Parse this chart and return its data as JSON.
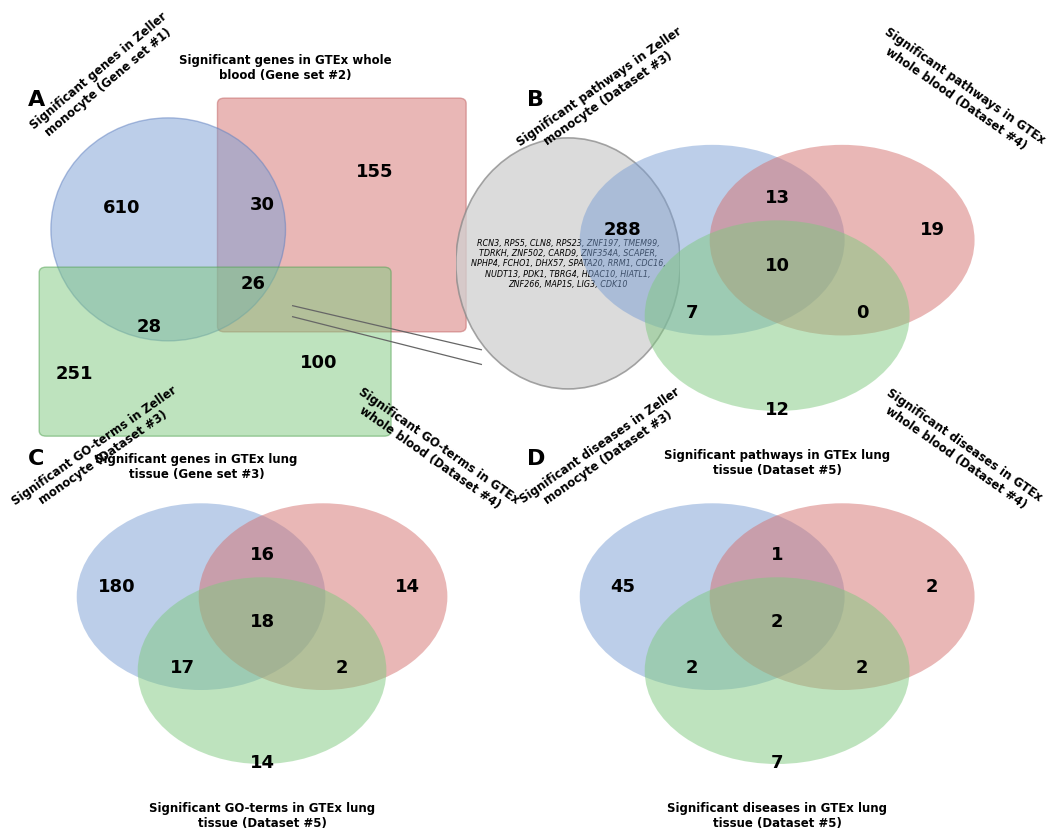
{
  "panel_A": {
    "label": "A",
    "blue_label": "Significant genes in Zeller\nmonocyte (Gene set #1)",
    "red_label": "Significant genes in GTEx whole\nblood (Gene set #2)",
    "green_label": "Significant genes in GTEx lung\ntissue (Gene set #3)",
    "blue_color": "#7b9fd4",
    "red_color": "#d4706e",
    "green_color": "#7fc97f",
    "numbers": {
      "blue_only": "610",
      "red_only": "155",
      "green_only": "251",
      "blue_red": "30",
      "blue_green": "28",
      "red_green": "100",
      "all_three": "26"
    },
    "gene_list": "RCN3, RPS5, CLN8, RPS23, ZNF197, TMEM99,\nTDRKH, ZNF502, CARD9, ZNF354A, SCAPER,\nNPHP4, FCHO1, DHX57, SPATA20, RRM1, CDC16,\nNUDT13, PDK1, TBRG4, HDAC10, HIATL1,\nZNF266, MAP1S, LIG3, CDK10"
  },
  "panel_B": {
    "label": "B",
    "blue_label": "Significant pathways in Zeller\nmonocyte (Dataset #3)",
    "red_label": "Significant pathways in GTEx\nwhole blood (Dataset #4)",
    "green_label": "Significant pathways in GTEx lung\ntissue (Dataset #5)",
    "blue_color": "#7b9fd4",
    "red_color": "#d4706e",
    "green_color": "#7fc97f",
    "numbers": {
      "blue_only": "288",
      "red_only": "19",
      "green_only": "12",
      "blue_red": "13",
      "blue_green": "7",
      "red_green": "0",
      "all_three": "10"
    }
  },
  "panel_C": {
    "label": "C",
    "blue_label": "Significant GO-terms in Zeller\nmonocyte (Dataset #3)",
    "red_label": "Significant GO-terms in GTEx\nwhole blood (Dataset #4)",
    "green_label": "Significant GO-terms in GTEx lung\ntissue (Dataset #5)",
    "blue_color": "#7b9fd4",
    "red_color": "#d4706e",
    "green_color": "#7fc97f",
    "numbers": {
      "blue_only": "180",
      "red_only": "14",
      "green_only": "14",
      "blue_red": "16",
      "blue_green": "17",
      "red_green": "2",
      "all_three": "18"
    }
  },
  "panel_D": {
    "label": "D",
    "blue_label": "Significant diseases in Zeller\nmonocyte (Dataset #3)",
    "red_label": "Significant diseases in GTEx\nwhole blood (Dataset #4)",
    "green_label": "Significant diseases in GTEx lung\ntissue (Dataset #5)",
    "blue_color": "#7b9fd4",
    "red_color": "#d4706e",
    "green_color": "#7fc97f",
    "numbers": {
      "blue_only": "45",
      "red_only": "2",
      "green_only": "7",
      "blue_red": "1",
      "blue_green": "2",
      "red_green": "2",
      "all_three": "2"
    }
  },
  "figure_bg": "#ffffff",
  "number_fontsize": 13,
  "label_fontsize": 8.5,
  "panel_label_fontsize": 16,
  "alpha": 0.5,
  "circle_color_edge": "none"
}
